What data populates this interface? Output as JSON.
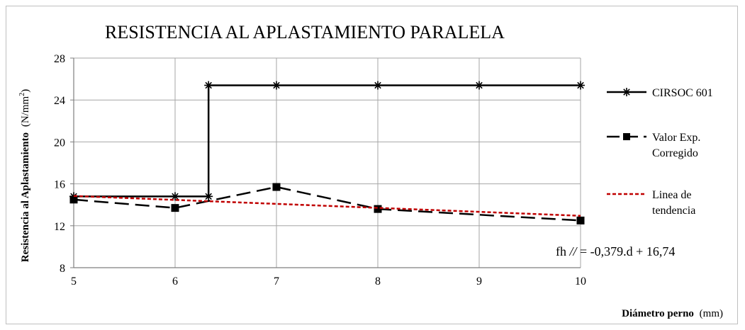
{
  "chart_data": {
    "type": "line",
    "title": "RESISTENCIA AL APLASTAMIENTO  PARALELA",
    "xlabel": "Diámetro perno",
    "xlabel_unit": "(mm)",
    "ylabel": "Resistencia al Aplastamiento",
    "ylabel_unit_prefix": "(N/mm",
    "ylabel_unit_sup": "2",
    "ylabel_unit_suffix": ")",
    "xlim": [
      5,
      10
    ],
    "ylim": [
      8,
      28
    ],
    "xticks": [
      "5",
      "6",
      "7",
      "8",
      "9",
      "10"
    ],
    "yticks": [
      "8",
      "12",
      "16",
      "20",
      "24",
      "28"
    ],
    "grid": true,
    "legend_position": "right",
    "series": [
      {
        "name": "CIRSOC 601",
        "color": "#000000",
        "style": "solid",
        "marker": "asterisk",
        "x": [
          5,
          6,
          6.33,
          6.33,
          7,
          8,
          9,
          10
        ],
        "y": [
          14.8,
          14.8,
          14.8,
          25.4,
          25.4,
          25.4,
          25.4,
          25.4
        ],
        "marker_points": [
          [
            5,
            14.8
          ],
          [
            6,
            14.8
          ],
          [
            6.33,
            14.8
          ],
          [
            6.33,
            25.4
          ],
          [
            7,
            25.4
          ],
          [
            8,
            25.4
          ],
          [
            9,
            25.4
          ],
          [
            10,
            25.4
          ]
        ]
      },
      {
        "name_line1": "Valor Exp.",
        "name_line2": "Corregido",
        "color": "#000000",
        "style": "dashed",
        "marker": "square",
        "x": [
          5,
          6,
          7,
          8,
          10
        ],
        "y": [
          14.5,
          13.7,
          15.7,
          13.6,
          12.5
        ]
      },
      {
        "name_line1": "Linea de",
        "name_line2": "tendencia",
        "color": "#c00000",
        "style": "dotted",
        "marker": "none",
        "x": [
          5,
          10
        ],
        "y": [
          14.845,
          12.95
        ]
      }
    ],
    "equation": {
      "lhs": "fh",
      "symbol": "//",
      "rhs": "= -0,379.d + 16,74"
    }
  }
}
